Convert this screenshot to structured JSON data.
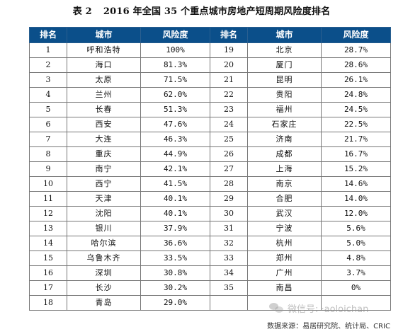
{
  "title": {
    "table_no": "表 2",
    "text": "2016 年全国 35 个重点城市房地产短周期风险度排名"
  },
  "headers": [
    "排名",
    "城市",
    "风险度",
    "排名",
    "城市",
    "风险度"
  ],
  "rows": [
    {
      "l": {
        "rank": "1",
        "city": "呼和浩特",
        "risk": "100%"
      },
      "r": {
        "rank": "19",
        "city": "北京",
        "risk": "28.7%"
      }
    },
    {
      "l": {
        "rank": "2",
        "city": "海口",
        "risk": "81.3%"
      },
      "r": {
        "rank": "20",
        "city": "厦门",
        "risk": "28.6%"
      }
    },
    {
      "l": {
        "rank": "3",
        "city": "太原",
        "risk": "71.5%"
      },
      "r": {
        "rank": "21",
        "city": "昆明",
        "risk": "26.1%"
      }
    },
    {
      "l": {
        "rank": "4",
        "city": "兰州",
        "risk": "62.0%"
      },
      "r": {
        "rank": "22",
        "city": "贵阳",
        "risk": "24.8%"
      }
    },
    {
      "l": {
        "rank": "5",
        "city": "长春",
        "risk": "51.3%"
      },
      "r": {
        "rank": "23",
        "city": "福州",
        "risk": "24.5%"
      }
    },
    {
      "l": {
        "rank": "6",
        "city": "西安",
        "risk": "47.6%"
      },
      "r": {
        "rank": "24",
        "city": "石家庄",
        "risk": "22.5%"
      }
    },
    {
      "l": {
        "rank": "7",
        "city": "大连",
        "risk": "46.3%"
      },
      "r": {
        "rank": "25",
        "city": "济南",
        "risk": "21.7%"
      }
    },
    {
      "l": {
        "rank": "8",
        "city": "重庆",
        "risk": "44.9%"
      },
      "r": {
        "rank": "26",
        "city": "成都",
        "risk": "16.7%"
      }
    },
    {
      "l": {
        "rank": "9",
        "city": "南宁",
        "risk": "42.1%"
      },
      "r": {
        "rank": "27",
        "city": "上海",
        "risk": "15.2%"
      }
    },
    {
      "l": {
        "rank": "10",
        "city": "西宁",
        "risk": "41.5%"
      },
      "r": {
        "rank": "28",
        "city": "南京",
        "risk": "14.6%"
      }
    },
    {
      "l": {
        "rank": "11",
        "city": "天津",
        "risk": "40.1%"
      },
      "r": {
        "rank": "29",
        "city": "合肥",
        "risk": "14.0%"
      }
    },
    {
      "l": {
        "rank": "12",
        "city": "沈阳",
        "risk": "40.1%"
      },
      "r": {
        "rank": "30",
        "city": "武汉",
        "risk": "12.0%"
      }
    },
    {
      "l": {
        "rank": "13",
        "city": "银川",
        "risk": "37.9%"
      },
      "r": {
        "rank": "31",
        "city": "宁波",
        "risk": "5.6%"
      }
    },
    {
      "l": {
        "rank": "14",
        "city": "哈尔滨",
        "risk": "36.6%"
      },
      "r": {
        "rank": "32",
        "city": "杭州",
        "risk": "5.0%"
      }
    },
    {
      "l": {
        "rank": "15",
        "city": "乌鲁木齐",
        "risk": "33.5%"
      },
      "r": {
        "rank": "33",
        "city": "郑州",
        "risk": "4.8%"
      }
    },
    {
      "l": {
        "rank": "16",
        "city": "深圳",
        "risk": "30.8%"
      },
      "r": {
        "rank": "34",
        "city": "广州",
        "risk": "3.7%"
      }
    },
    {
      "l": {
        "rank": "17",
        "city": "长沙",
        "risk": "30.2%"
      },
      "r": {
        "rank": "35",
        "city": "南昌",
        "risk": "0%"
      }
    },
    {
      "l": {
        "rank": "18",
        "city": "青岛",
        "risk": "29.0%"
      },
      "r": {
        "rank": "",
        "city": "",
        "risk": ""
      }
    }
  ],
  "footer": "数据来源：易居研究院、统计局、CRIC",
  "watermark": {
    "icon": "wechat-icon",
    "text": "微信号: ·aoloichan"
  }
}
